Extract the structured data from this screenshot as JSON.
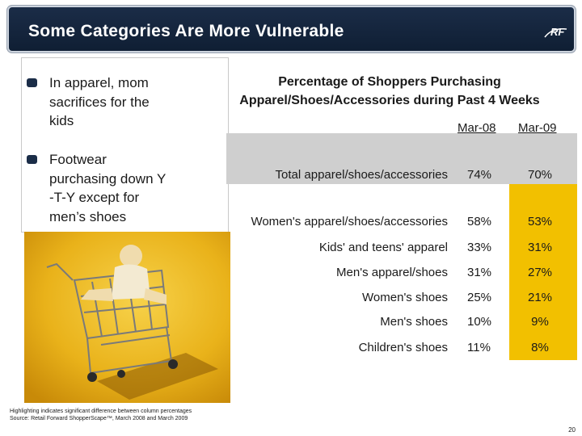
{
  "header": {
    "title": "Some Categories Are More Vulnerable",
    "logo_text": "RF"
  },
  "bullets": [
    {
      "lines": [
        "In apparel, mom",
        "sacrifices for the",
        "kids"
      ]
    },
    {
      "lines": [
        "Footwear",
        "purchasing down Y",
        "-T-Y except for",
        "men’s shoes"
      ]
    }
  ],
  "table": {
    "heading_lines": [
      "Percentage of Shoppers Purchasing",
      "Apparel/Shoes/Accessories during Past 4 Weeks"
    ],
    "columns": [
      "Mar-08",
      "Mar-09"
    ],
    "rows": [
      {
        "label": "Total apparel/shoes/accessories",
        "mar08": "74%",
        "mar09": "70%"
      },
      {
        "label": "Women's apparel/shoes/accessories",
        "mar08": "58%",
        "mar09": "53%"
      },
      {
        "label": "Kids' and teens' apparel",
        "mar08": "33%",
        "mar09": "31%"
      },
      {
        "label": "Men's apparel/shoes",
        "mar08": "31%",
        "mar09": "27%"
      },
      {
        "label": "Women's shoes",
        "mar08": "25%",
        "mar09": "21%"
      },
      {
        "label": "Men's shoes",
        "mar08": "10%",
        "mar09": "9%"
      },
      {
        "label": "Children's shoes",
        "mar08": "11%",
        "mar09": "8%"
      }
    ]
  },
  "footnote": {
    "line1": "Highlighting indicates significant difference between column percentages",
    "line2": "Source: Retail Forward ShopperScape™, March 2008 and March 2009"
  },
  "page_number": "20",
  "colors": {
    "header_bg": "#1b2d48",
    "highlight_yellow": "#f2c000",
    "band_grey": "#cfcfcf"
  }
}
